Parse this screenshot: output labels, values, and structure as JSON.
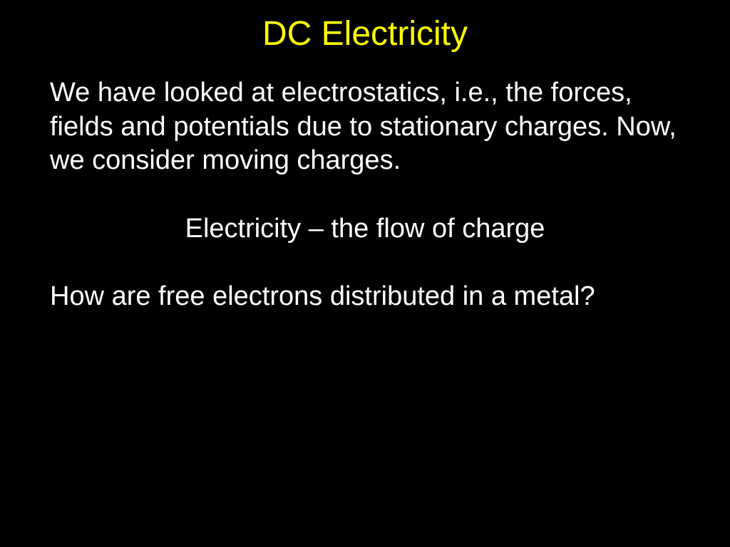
{
  "slide": {
    "title": "DC Electricity",
    "paragraph1": "We have looked at electrostatics, i.e., the forces, fields and potentials due to stationary charges. Now, we consider moving charges.",
    "definition": "Electricity – the flow of charge",
    "question": "How are free electrons distributed in a metal?",
    "colors": {
      "background": "#000000",
      "title": "#ffff00",
      "body": "#ffffff"
    },
    "typography": {
      "title_fontsize": 48,
      "body_fontsize": 38,
      "font_family": "Arial"
    }
  }
}
